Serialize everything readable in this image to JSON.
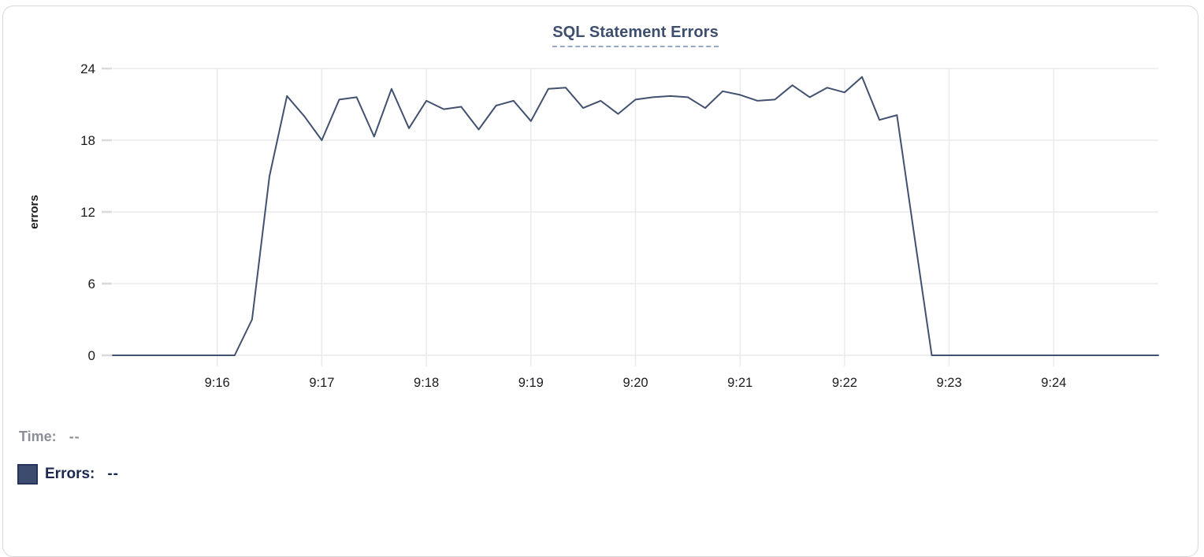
{
  "card": {
    "title": "SQL Statement Errors"
  },
  "colors": {
    "accent_navy": "#3d4e6e",
    "line": "#41516f",
    "grid": "#e9eaec",
    "tick": "#d9dadc",
    "axis_text": "#1a1c1f",
    "title_underline": "#9aa8c6",
    "time_text": "#8b8f97",
    "errors_text": "#1b2850",
    "swatch_fill": "#3d4c6e",
    "card_border": "#d8d8d8"
  },
  "tooltip": {
    "time_label": "Time:",
    "time_value": "--",
    "errors_label": "Errors:",
    "errors_value": "--"
  },
  "chart_data": {
    "type": "line",
    "title": "SQL Statement Errors",
    "xlabel": "",
    "ylabel": "errors",
    "ylim": [
      0,
      24
    ],
    "yticks": [
      0,
      6,
      12,
      18,
      24
    ],
    "xticks": [
      "9:16",
      "9:17",
      "9:18",
      "9:19",
      "9:20",
      "9:21",
      "9:22",
      "9:23",
      "9:24"
    ],
    "x_range": [
      "9:15:00",
      "9:25:00"
    ],
    "interval_seconds": 10,
    "grid": true,
    "legend_position": "bottom-left",
    "series": [
      {
        "name": "Errors",
        "color": "#41516f",
        "x": [
          "9:15:00",
          "9:15:10",
          "9:15:20",
          "9:15:30",
          "9:15:40",
          "9:15:50",
          "9:16:00",
          "9:16:10",
          "9:16:20",
          "9:16:30",
          "9:16:40",
          "9:16:50",
          "9:17:00",
          "9:17:10",
          "9:17:20",
          "9:17:30",
          "9:17:40",
          "9:17:50",
          "9:18:00",
          "9:18:10",
          "9:18:20",
          "9:18:30",
          "9:18:40",
          "9:18:50",
          "9:19:00",
          "9:19:10",
          "9:19:20",
          "9:19:30",
          "9:19:40",
          "9:19:50",
          "9:20:00",
          "9:20:10",
          "9:20:20",
          "9:20:30",
          "9:20:40",
          "9:20:50",
          "9:21:00",
          "9:21:10",
          "9:21:20",
          "9:21:30",
          "9:21:40",
          "9:21:50",
          "9:22:00",
          "9:22:10",
          "9:22:20",
          "9:22:30",
          "9:22:40",
          "9:22:50",
          "9:23:00",
          "9:23:10",
          "9:23:20",
          "9:23:30",
          "9:23:40",
          "9:23:50",
          "9:24:00",
          "9:24:10",
          "9:24:20",
          "9:24:30",
          "9:24:40",
          "9:24:50",
          "9:25:00"
        ],
        "values": [
          0,
          0,
          0,
          0,
          0,
          0,
          0,
          0,
          3,
          15,
          21.7,
          20,
          18,
          21.4,
          21.6,
          18.3,
          22.3,
          19,
          21.3,
          20.6,
          20.8,
          18.9,
          20.9,
          21.3,
          19.6,
          22.3,
          22.4,
          20.7,
          21.3,
          20.2,
          21.4,
          21.6,
          21.7,
          21.6,
          20.7,
          22.1,
          21.8,
          21.3,
          21.4,
          22.6,
          21.6,
          22.4,
          22.0,
          23.3,
          19.7,
          20.1,
          10,
          0,
          0,
          0,
          0,
          0,
          0,
          0,
          0,
          0,
          0,
          0,
          0,
          0,
          0
        ]
      }
    ]
  }
}
